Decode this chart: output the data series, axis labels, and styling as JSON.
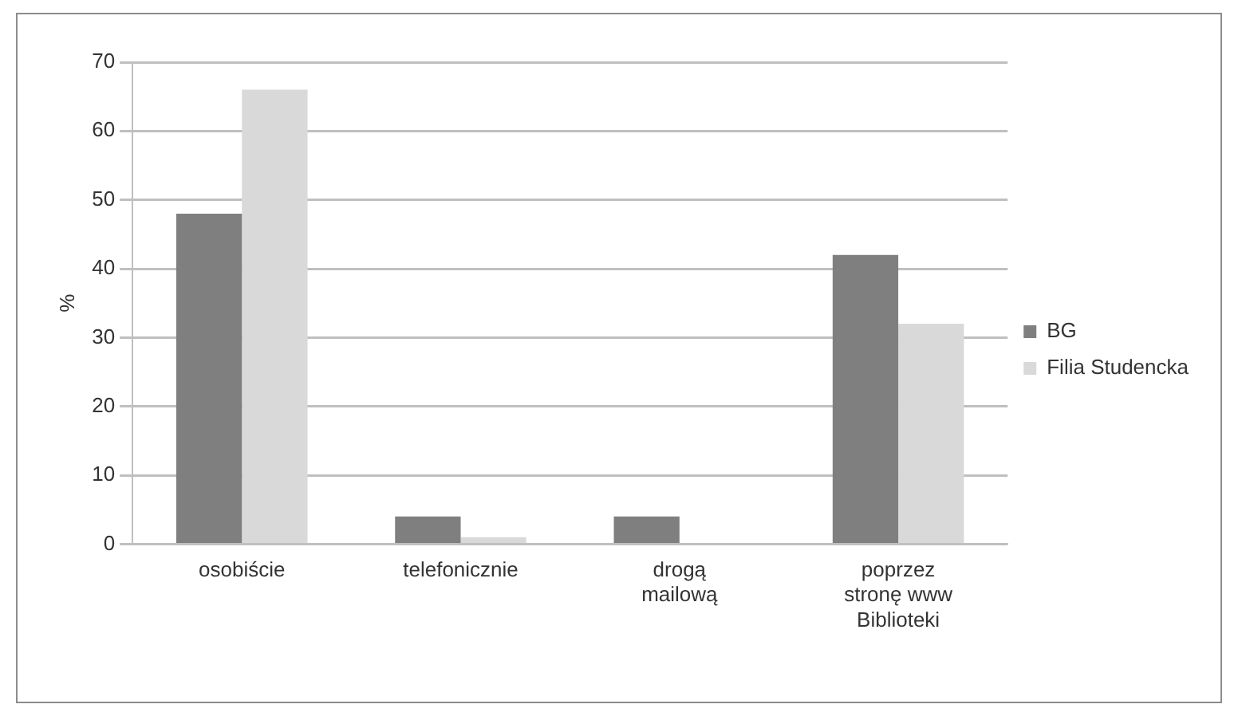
{
  "chart_data": {
    "type": "bar",
    "ylabel": "%",
    "categories": [
      "osobiście",
      "telefonicznie",
      "drogą mailową",
      "poprzez stronę www Biblioteki"
    ],
    "series": [
      {
        "name": "BG",
        "color": "#7f7f7f",
        "values": [
          48,
          4,
          4,
          42
        ]
      },
      {
        "name": "Filia Studencka",
        "color": "#d9d9d9",
        "values": [
          66,
          1,
          0,
          32
        ]
      }
    ],
    "ylim": [
      0,
      70
    ],
    "yticks": [
      0,
      10,
      20,
      30,
      40,
      50,
      60,
      70
    ],
    "grid": "y",
    "legend": "right"
  }
}
